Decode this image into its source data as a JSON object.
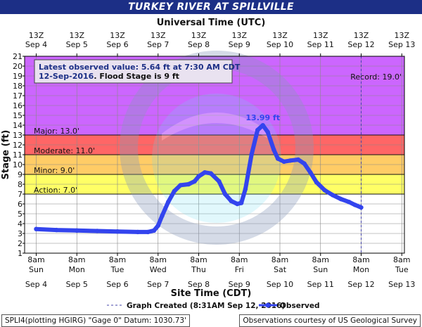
{
  "header": {
    "title": "TURKEY RIVER AT SPILLVILLE"
  },
  "chart_data": {
    "type": "line",
    "title": "TURKEY RIVER AT SPILLVILLE",
    "top_axis_label": "Universal Time (UTC)",
    "xlabel": "Site Time (CDT)",
    "ylabel": "Stage (ft)",
    "ylim": [
      1,
      21
    ],
    "y_ticks": [
      1,
      2,
      3,
      4,
      5,
      6,
      7,
      8,
      9,
      10,
      11,
      12,
      13,
      14,
      15,
      16,
      17,
      18,
      19,
      20,
      21
    ],
    "top_ticks": [
      {
        "time": "13Z",
        "date": "Sep 4"
      },
      {
        "time": "13Z",
        "date": "Sep 5"
      },
      {
        "time": "13Z",
        "date": "Sep 6"
      },
      {
        "time": "13Z",
        "date": "Sep 7"
      },
      {
        "time": "13Z",
        "date": "Sep 8"
      },
      {
        "time": "13Z",
        "date": "Sep 9"
      },
      {
        "time": "13Z",
        "date": "Sep 10"
      },
      {
        "time": "13Z",
        "date": "Sep 11"
      },
      {
        "time": "13Z",
        "date": "Sep 12"
      },
      {
        "time": "13Z",
        "date": "Sep 13"
      }
    ],
    "bottom_ticks": [
      {
        "time": "8am",
        "day": "Sun",
        "date": "Sep 4"
      },
      {
        "time": "8am",
        "day": "Mon",
        "date": "Sep 5"
      },
      {
        "time": "8am",
        "day": "Tue",
        "date": "Sep 6"
      },
      {
        "time": "8am",
        "day": "Wed",
        "date": "Sep 7"
      },
      {
        "time": "8am",
        "day": "Thu",
        "date": "Sep 8"
      },
      {
        "time": "8am",
        "day": "Fri",
        "date": "Sep 9"
      },
      {
        "time": "8am",
        "day": "Sat",
        "date": "Sep 10"
      },
      {
        "time": "8am",
        "day": "Sun",
        "date": "Sep 11"
      },
      {
        "time": "8am",
        "day": "Mon",
        "date": "Sep 12"
      },
      {
        "time": "8am",
        "day": "Tue",
        "date": "Sep 13"
      }
    ],
    "flood_bands": [
      {
        "name": "Action",
        "label": "Action: 7.0'",
        "from": 7,
        "to": 9,
        "color": "#ffff66"
      },
      {
        "name": "Minor",
        "label": "Minor: 9.0'",
        "from": 9,
        "to": 11,
        "color": "#ffcc66"
      },
      {
        "name": "Moderate",
        "label": "Moderate: 11.0'",
        "from": 11,
        "to": 13,
        "color": "#ff6666"
      },
      {
        "name": "Major",
        "label": "Major: 13.0'",
        "from": 13,
        "to": 21,
        "color": "#cc66ff"
      }
    ],
    "record": {
      "label": "Record: 19.0'",
      "value": 19
    },
    "peak_label": "13.99 ft",
    "peak": {
      "day": 5.58,
      "value": 13.99
    },
    "graph_created_day": 8.0,
    "series": [
      {
        "name": "Observed",
        "color": "#3344ee",
        "unit_note": "x = days after Sep 4 8am CDT",
        "points": [
          [
            0.0,
            3.45
          ],
          [
            0.5,
            3.35
          ],
          [
            1.0,
            3.3
          ],
          [
            1.5,
            3.25
          ],
          [
            2.0,
            3.2
          ],
          [
            2.5,
            3.15
          ],
          [
            2.75,
            3.15
          ],
          [
            2.9,
            3.3
          ],
          [
            3.0,
            3.8
          ],
          [
            3.1,
            4.8
          ],
          [
            3.25,
            6.2
          ],
          [
            3.4,
            7.3
          ],
          [
            3.55,
            7.9
          ],
          [
            3.75,
            8.0
          ],
          [
            3.9,
            8.3
          ],
          [
            4.0,
            8.8
          ],
          [
            4.15,
            9.2
          ],
          [
            4.3,
            9.1
          ],
          [
            4.5,
            8.3
          ],
          [
            4.65,
            7.0
          ],
          [
            4.8,
            6.3
          ],
          [
            4.95,
            6.0
          ],
          [
            5.05,
            6.1
          ],
          [
            5.15,
            7.5
          ],
          [
            5.3,
            11.0
          ],
          [
            5.45,
            13.5
          ],
          [
            5.58,
            13.99
          ],
          [
            5.7,
            13.3
          ],
          [
            5.85,
            11.5
          ],
          [
            5.95,
            10.6
          ],
          [
            6.1,
            10.3
          ],
          [
            6.25,
            10.4
          ],
          [
            6.45,
            10.5
          ],
          [
            6.6,
            10.1
          ],
          [
            6.75,
            9.2
          ],
          [
            6.9,
            8.2
          ],
          [
            7.1,
            7.4
          ],
          [
            7.3,
            6.9
          ],
          [
            7.5,
            6.5
          ],
          [
            7.7,
            6.2
          ],
          [
            7.85,
            5.9
          ],
          [
            8.0,
            5.64
          ]
        ]
      }
    ],
    "latest_observed": {
      "text": "Latest observed value: 5.64 ft at 7:30 AM CDT",
      "date": "12-Sep-2016",
      "flood_stage_text": ". Flood Stage is 9 ft"
    },
    "legend": [
      {
        "label": "Graph Created (8:31AM Sep 12, 2016)",
        "style": "dashed"
      },
      {
        "label": "Observed",
        "style": "line-with-dots"
      }
    ]
  },
  "footer": {
    "left": "SPLI4(plotting HGIRG) \"Gage 0\" Datum: 1030.73'",
    "right": "Observations courtesy of US Geological Survey"
  },
  "colors": {
    "title_bar": "#1c2f86",
    "series": "#3344ee",
    "text_blue": "#1c2f86"
  }
}
